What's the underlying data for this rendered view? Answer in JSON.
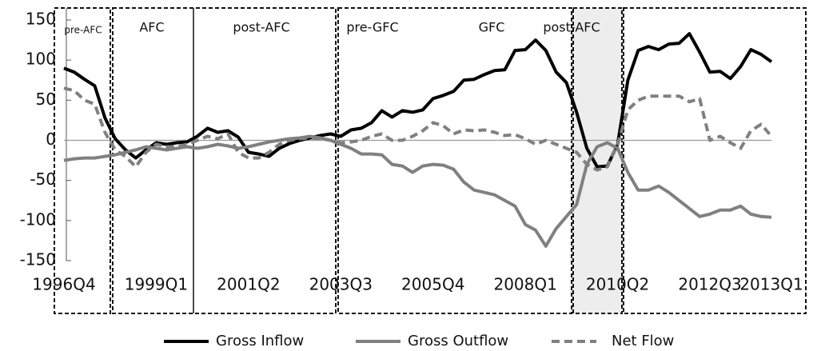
{
  "chart_data": {
    "type": "line",
    "categories": [
      "1996Q4",
      null,
      null,
      null,
      null,
      null,
      null,
      null,
      null,
      "1999Q1",
      null,
      null,
      null,
      null,
      null,
      null,
      null,
      null,
      "2001Q2",
      null,
      null,
      null,
      null,
      null,
      null,
      null,
      null,
      "2003Q3",
      null,
      null,
      null,
      null,
      null,
      null,
      null,
      null,
      "2005Q4",
      null,
      null,
      null,
      null,
      null,
      null,
      null,
      null,
      "2008Q1",
      null,
      null,
      null,
      null,
      null,
      null,
      null,
      null,
      "2010Q2",
      null,
      null,
      null,
      null,
      null,
      null,
      null,
      null,
      "2012Q3",
      null,
      null,
      null,
      null,
      null,
      "2013Q1"
    ],
    "series": [
      {
        "name": "Gross Inflow",
        "color": "#000000",
        "style": "solid",
        "values": [
          90,
          85,
          76,
          68,
          28,
          2,
          -12,
          -22,
          -12,
          -3,
          -5,
          -3,
          -2,
          5,
          15,
          10,
          12,
          4,
          -15,
          -17,
          -20,
          -10,
          -4,
          0,
          3,
          6,
          8,
          5,
          13,
          15,
          22,
          37,
          29,
          37,
          35,
          38,
          52,
          56,
          61,
          75,
          76,
          82,
          87,
          88,
          112,
          113,
          125,
          112,
          85,
          72,
          35,
          -10,
          -33,
          -32,
          -5,
          75,
          112,
          117,
          113,
          120,
          121,
          133,
          110,
          85,
          86,
          77,
          92,
          113,
          107,
          98
        ]
      },
      {
        "name": "Gross Outflow",
        "color": "#808080",
        "style": "solid",
        "values": [
          -25,
          -23,
          -22,
          -22,
          -20,
          -18,
          -15,
          -12,
          -8,
          -10,
          -12,
          -10,
          -8,
          -10,
          -8,
          -5,
          -7,
          -10,
          -8,
          -5,
          -2,
          0,
          2,
          3,
          5,
          3,
          0,
          -5,
          -10,
          -17,
          -17,
          -18,
          -30,
          -32,
          -40,
          -32,
          -30,
          -31,
          -36,
          -52,
          -62,
          -65,
          -68,
          -75,
          -82,
          -105,
          -112,
          -132,
          -110,
          -95,
          -80,
          -30,
          -8,
          -3,
          -10,
          -40,
          -62,
          -62,
          -57,
          -65,
          -75,
          -85,
          -95,
          -92,
          -87,
          -87,
          -82,
          -92,
          -95,
          -96
        ]
      },
      {
        "name": "Net Flow",
        "color": "#808080",
        "style": "dashed",
        "values": [
          65,
          62,
          50,
          45,
          10,
          -12,
          -20,
          -33,
          -15,
          -5,
          -8,
          -8,
          -5,
          0,
          5,
          2,
          8,
          -15,
          -22,
          -22,
          -15,
          -5,
          0,
          2,
          3,
          2,
          0,
          -3,
          -2,
          0,
          5,
          8,
          0,
          0,
          5,
          12,
          22,
          18,
          8,
          13,
          12,
          13,
          10,
          6,
          7,
          2,
          -5,
          0,
          -5,
          -10,
          -15,
          -30,
          -37,
          -33,
          -5,
          38,
          50,
          55,
          55,
          55,
          55,
          48,
          52,
          0,
          5,
          -3,
          -10,
          12,
          20,
          5
        ]
      }
    ],
    "annotations": [
      "pre-AFC",
      "AFC",
      "post-AFC",
      "pre-GFC",
      "GFC",
      "post-AFC"
    ],
    "ylim": [
      -150,
      150
    ],
    "yticks": [
      -150,
      -100,
      -50,
      0,
      50,
      100,
      150
    ],
    "zero_line": true
  }
}
